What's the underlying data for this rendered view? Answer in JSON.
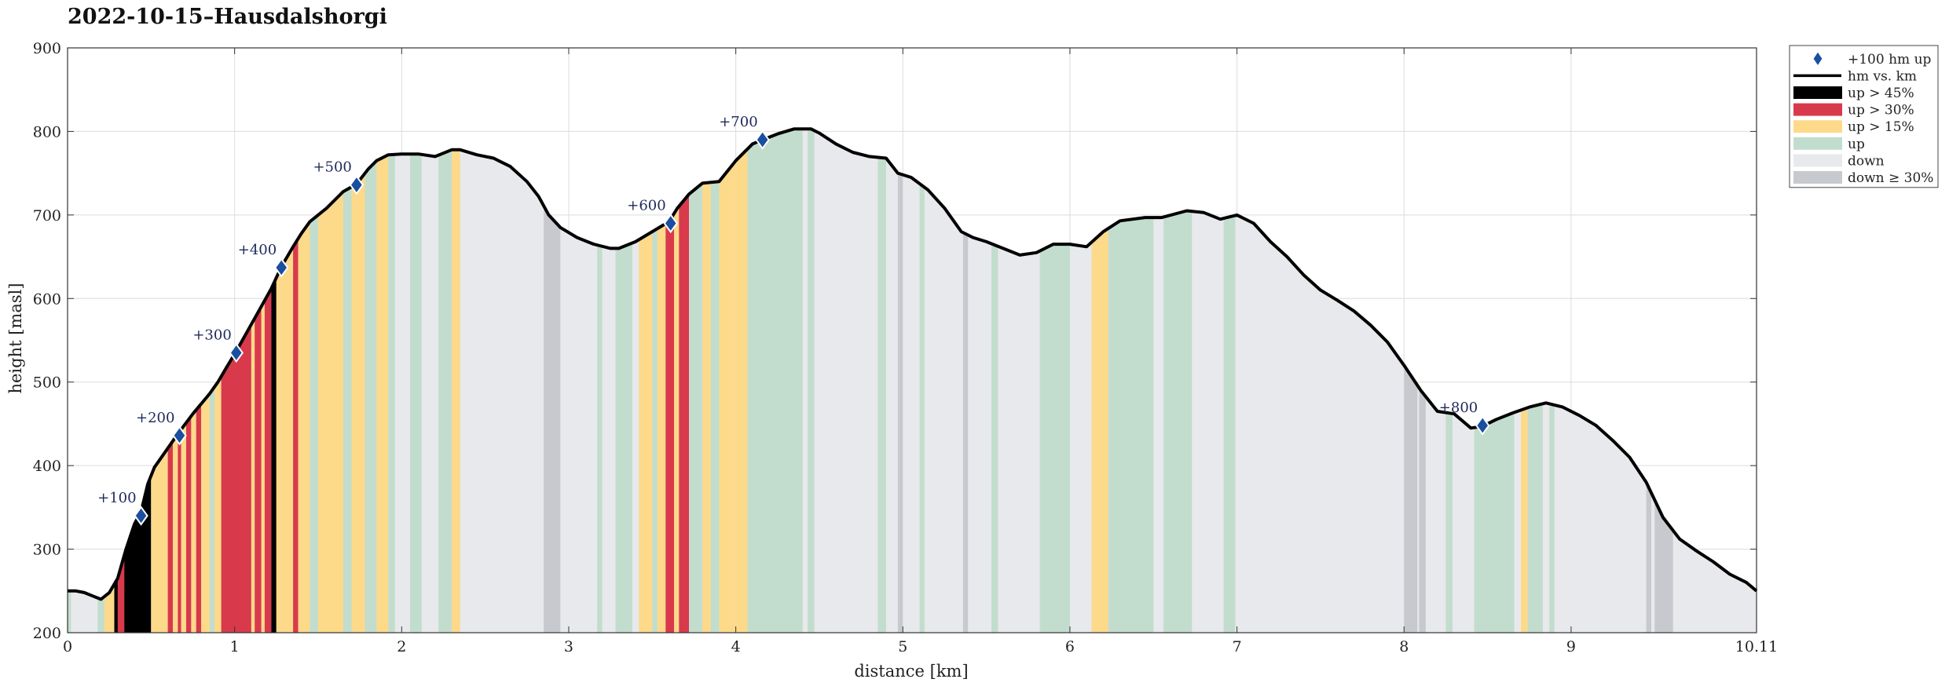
{
  "chart_data": {
    "type": "area",
    "title": "2022-10-15–Hausdalshorgi",
    "xlabel": "distance [km]",
    "ylabel": "height [masl]",
    "xlim": [
      0,
      10.11
    ],
    "ylim": [
      200,
      900
    ],
    "xticks": [
      0,
      1,
      2,
      3,
      4,
      5,
      6,
      7,
      8,
      9,
      10.11
    ],
    "xtick_labels": [
      "0",
      "1",
      "2",
      "3",
      "4",
      "5",
      "6",
      "7",
      "8",
      "9",
      "10.11"
    ],
    "yticks": [
      200,
      300,
      400,
      500,
      600,
      700,
      800,
      900
    ],
    "ytick_labels": [
      "200",
      "300",
      "400",
      "500",
      "600",
      "700",
      "800",
      "900"
    ],
    "grid": true,
    "legend_position": "outside-top-right",
    "legend": [
      {
        "label": "+100 hm up",
        "kind": "marker",
        "color": "#1a4fa0"
      },
      {
        "label": "hm vs. km",
        "kind": "line",
        "color": "#000000"
      },
      {
        "label": "up > 45%",
        "kind": "patch",
        "color": "#000000"
      },
      {
        "label": "up > 30%",
        "kind": "patch",
        "color": "#d83a4c"
      },
      {
        "label": "up > 15%",
        "kind": "patch",
        "color": "#fdd98a"
      },
      {
        "label": "up",
        "kind": "patch",
        "color": "#c2ddcd"
      },
      {
        "label": "down",
        "kind": "patch",
        "color": "#e8e9ec"
      },
      {
        "label": "down ≥ 30%",
        "kind": "patch",
        "color": "#c8c9cf"
      }
    ],
    "profile": {
      "x": [
        0,
        0.05,
        0.1,
        0.15,
        0.2,
        0.25,
        0.3,
        0.35,
        0.4,
        0.44,
        0.48,
        0.52,
        0.58,
        0.66,
        0.75,
        0.85,
        0.9,
        0.95,
        1.01,
        1.08,
        1.15,
        1.22,
        1.28,
        1.35,
        1.4,
        1.45,
        1.55,
        1.65,
        1.73,
        1.8,
        1.85,
        1.92,
        2.0,
        2.1,
        2.2,
        2.3,
        2.35,
        2.45,
        2.55,
        2.65,
        2.75,
        2.82,
        2.88,
        2.95,
        3.05,
        3.15,
        3.25,
        3.3,
        3.4,
        3.5,
        3.6,
        3.65,
        3.72,
        3.8,
        3.9,
        4.0,
        4.1,
        4.16,
        4.25,
        4.35,
        4.45,
        4.5,
        4.6,
        4.7,
        4.8,
        4.9,
        4.97,
        5.05,
        5.15,
        5.25,
        5.35,
        5.42,
        5.5,
        5.6,
        5.7,
        5.8,
        5.9,
        6.0,
        6.1,
        6.2,
        6.3,
        6.45,
        6.55,
        6.7,
        6.8,
        6.9,
        7.0,
        7.1,
        7.2,
        7.3,
        7.4,
        7.5,
        7.6,
        7.7,
        7.8,
        7.9,
        8.0,
        8.1,
        8.2,
        8.3,
        8.4,
        8.47,
        8.55,
        8.65,
        8.75,
        8.85,
        8.95,
        9.05,
        9.15,
        9.25,
        9.35,
        9.45,
        9.55,
        9.65,
        9.75,
        9.85,
        9.95,
        10.05,
        10.11
      ],
      "y": [
        250,
        250,
        248,
        244,
        240,
        248,
        265,
        300,
        330,
        345,
        378,
        398,
        415,
        438,
        462,
        486,
        500,
        517,
        537,
        562,
        587,
        612,
        638,
        662,
        678,
        692,
        708,
        728,
        737,
        755,
        765,
        772,
        773,
        773,
        770,
        778,
        778,
        772,
        768,
        758,
        740,
        722,
        700,
        685,
        673,
        665,
        660,
        660,
        668,
        680,
        692,
        708,
        725,
        738,
        740,
        765,
        785,
        790,
        797,
        803,
        803,
        798,
        785,
        775,
        770,
        768,
        750,
        745,
        730,
        708,
        680,
        673,
        668,
        660,
        652,
        655,
        665,
        665,
        662,
        680,
        693,
        697,
        697,
        705,
        703,
        695,
        700,
        690,
        668,
        650,
        628,
        610,
        598,
        585,
        568,
        548,
        520,
        490,
        465,
        462,
        445,
        447,
        455,
        463,
        470,
        475,
        470,
        460,
        448,
        430,
        410,
        380,
        338,
        312,
        298,
        285,
        270,
        260,
        250
      ]
    },
    "milestones": [
      {
        "label": "+100",
        "x": 0.44,
        "y": 340
      },
      {
        "label": "+200",
        "x": 0.67,
        "y": 436
      },
      {
        "label": "+300",
        "x": 1.01,
        "y": 535
      },
      {
        "label": "+400",
        "x": 1.28,
        "y": 637
      },
      {
        "label": "+500",
        "x": 1.73,
        "y": 736
      },
      {
        "label": "+600",
        "x": 3.61,
        "y": 690
      },
      {
        "label": "+700",
        "x": 4.16,
        "y": 790
      },
      {
        "label": "+800",
        "x": 8.47,
        "y": 448
      }
    ],
    "band_colors": {
      "up45": "#000000",
      "up30": "#d83a4c",
      "up15": "#fdd98a",
      "up": "#c2ddcd",
      "down": "#e8e9ec",
      "down30": "#c8c9cf"
    },
    "bands": [
      [
        0.0,
        0.02,
        "up"
      ],
      [
        0.18,
        0.22,
        "up"
      ],
      [
        0.22,
        0.28,
        "up15"
      ],
      [
        0.28,
        0.5,
        "up45"
      ],
      [
        0.3,
        0.34,
        "up30"
      ],
      [
        0.5,
        0.6,
        "up15"
      ],
      [
        0.6,
        0.63,
        "up30"
      ],
      [
        0.63,
        0.66,
        "up15"
      ],
      [
        0.66,
        0.68,
        "up30"
      ],
      [
        0.68,
        0.71,
        "up15"
      ],
      [
        0.71,
        0.74,
        "up30"
      ],
      [
        0.74,
        0.77,
        "up15"
      ],
      [
        0.77,
        0.8,
        "up30"
      ],
      [
        0.8,
        0.85,
        "up15"
      ],
      [
        0.85,
        0.88,
        "up"
      ],
      [
        0.88,
        0.92,
        "up15"
      ],
      [
        0.92,
        1.1,
        "up30"
      ],
      [
        1.1,
        1.12,
        "up15"
      ],
      [
        1.12,
        1.16,
        "up30"
      ],
      [
        1.16,
        1.18,
        "up15"
      ],
      [
        1.18,
        1.22,
        "up30"
      ],
      [
        1.22,
        1.25,
        "up45"
      ],
      [
        1.25,
        1.35,
        "up15"
      ],
      [
        1.35,
        1.38,
        "up30"
      ],
      [
        1.38,
        1.45,
        "up15"
      ],
      [
        1.45,
        1.5,
        "up"
      ],
      [
        1.5,
        1.65,
        "up15"
      ],
      [
        1.65,
        1.7,
        "up"
      ],
      [
        1.7,
        1.78,
        "up15"
      ],
      [
        1.78,
        1.85,
        "up"
      ],
      [
        1.85,
        1.92,
        "up15"
      ],
      [
        1.92,
        1.96,
        "up"
      ],
      [
        2.05,
        2.12,
        "up"
      ],
      [
        2.22,
        2.3,
        "up"
      ],
      [
        2.3,
        2.35,
        "up15"
      ],
      [
        2.85,
        2.95,
        "down30"
      ],
      [
        3.17,
        3.2,
        "up"
      ],
      [
        3.28,
        3.38,
        "up"
      ],
      [
        3.42,
        3.5,
        "up15"
      ],
      [
        3.5,
        3.53,
        "up"
      ],
      [
        3.53,
        3.58,
        "up15"
      ],
      [
        3.58,
        3.63,
        "up30"
      ],
      [
        3.63,
        3.66,
        "up15"
      ],
      [
        3.66,
        3.72,
        "up30"
      ],
      [
        3.72,
        3.8,
        "up"
      ],
      [
        3.8,
        3.85,
        "up15"
      ],
      [
        3.85,
        3.9,
        "up"
      ],
      [
        3.9,
        4.0,
        "up15"
      ],
      [
        4.0,
        4.07,
        "up15"
      ],
      [
        4.07,
        4.4,
        "up"
      ],
      [
        4.43,
        4.47,
        "up"
      ],
      [
        4.85,
        4.9,
        "up"
      ],
      [
        4.97,
        5.0,
        "down30"
      ],
      [
        5.1,
        5.13,
        "up"
      ],
      [
        5.36,
        5.39,
        "down30"
      ],
      [
        5.53,
        5.57,
        "up"
      ],
      [
        5.82,
        6.0,
        "up"
      ],
      [
        6.13,
        6.23,
        "up15"
      ],
      [
        6.23,
        6.5,
        "up"
      ],
      [
        6.56,
        6.73,
        "up"
      ],
      [
        6.92,
        6.99,
        "up"
      ],
      [
        8.0,
        8.08,
        "down30"
      ],
      [
        8.09,
        8.13,
        "down30"
      ],
      [
        8.25,
        8.29,
        "up"
      ],
      [
        8.42,
        8.66,
        "up"
      ],
      [
        8.7,
        8.74,
        "up15"
      ],
      [
        8.74,
        8.83,
        "up"
      ],
      [
        8.87,
        8.9,
        "up"
      ],
      [
        9.45,
        9.48,
        "down30"
      ],
      [
        9.5,
        9.61,
        "down30"
      ]
    ]
  }
}
